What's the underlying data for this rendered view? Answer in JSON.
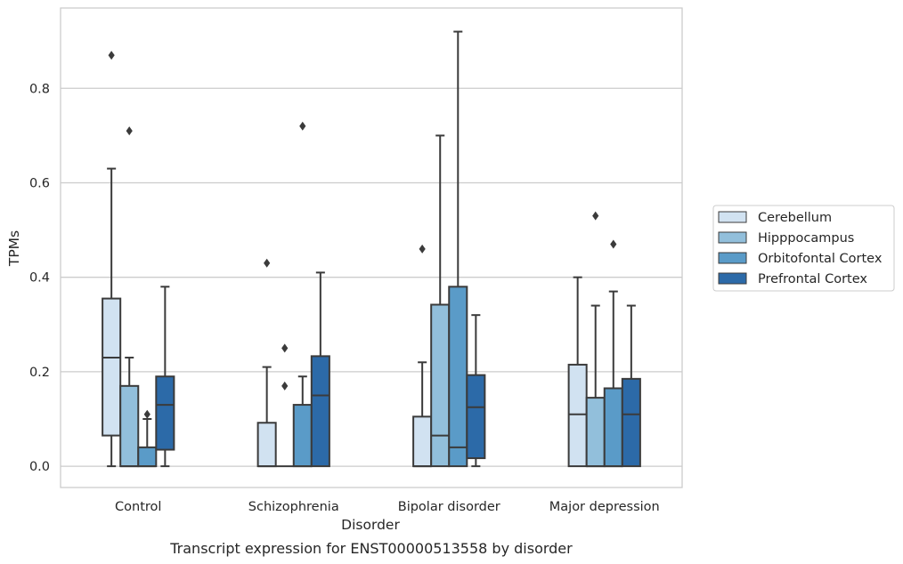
{
  "chart_data": {
    "type": "box",
    "caption": "Transcript expression for ENST00000513558 by disorder",
    "xlabel": "Disorder",
    "ylabel": "TPMs",
    "ylim": [
      -0.045,
      0.97
    ],
    "yticks": [
      0.0,
      0.2,
      0.4,
      0.6,
      0.8
    ],
    "ytick_labels": [
      "0.0",
      "0.2",
      "0.4",
      "0.6",
      "0.8"
    ],
    "grid": true,
    "legend_position": "right",
    "categories": [
      "Control",
      "Schizophrenia",
      "Bipolar disorder",
      "Major depression"
    ],
    "series": [
      {
        "name": "Cerebellum",
        "color": "#d1e2f1",
        "boxes": [
          {
            "min": 0.0,
            "q1": 0.065,
            "median": 0.23,
            "q3": 0.355,
            "max": 0.63,
            "outliers": [
              0.87
            ]
          },
          {
            "min": 0.0,
            "q1": 0.0,
            "median": 0.0,
            "q3": 0.092,
            "max": 0.21,
            "outliers": [
              0.43
            ]
          },
          {
            "min": 0.0,
            "q1": 0.0,
            "median": 0.0,
            "q3": 0.105,
            "max": 0.22,
            "outliers": [
              0.46
            ]
          },
          {
            "min": 0.0,
            "q1": 0.0,
            "median": 0.11,
            "q3": 0.215,
            "max": 0.4,
            "outliers": []
          }
        ]
      },
      {
        "name": "Hipppocampus",
        "color": "#92bfdb",
        "boxes": [
          {
            "min": 0.0,
            "q1": 0.0,
            "median": 0.0,
            "q3": 0.17,
            "max": 0.23,
            "outliers": [
              0.71
            ]
          },
          {
            "min": 0.0,
            "q1": 0.0,
            "median": 0.0,
            "q3": 0.0,
            "max": 0.0,
            "outliers": [
              0.25,
              0.17
            ]
          },
          {
            "min": 0.0,
            "q1": 0.0,
            "median": 0.065,
            "q3": 0.342,
            "max": 0.7,
            "outliers": []
          },
          {
            "min": 0.0,
            "q1": 0.0,
            "median": 0.0,
            "q3": 0.145,
            "max": 0.34,
            "outliers": [
              0.53
            ]
          }
        ]
      },
      {
        "name": "Orbitofontal Cortex",
        "color": "#5a9bc8",
        "boxes": [
          {
            "min": 0.0,
            "q1": 0.0,
            "median": 0.0,
            "q3": 0.04,
            "max": 0.1,
            "outliers": [
              0.11
            ]
          },
          {
            "min": 0.0,
            "q1": 0.0,
            "median": 0.0,
            "q3": 0.13,
            "max": 0.19,
            "outliers": [
              0.72
            ]
          },
          {
            "min": 0.0,
            "q1": 0.0,
            "median": 0.04,
            "q3": 0.38,
            "max": 0.92,
            "outliers": []
          },
          {
            "min": 0.0,
            "q1": 0.0,
            "median": 0.0,
            "q3": 0.165,
            "max": 0.37,
            "outliers": [
              0.47
            ]
          }
        ]
      },
      {
        "name": "Prefrontal Cortex",
        "color": "#2c6aa8",
        "boxes": [
          {
            "min": 0.0,
            "q1": 0.035,
            "median": 0.13,
            "q3": 0.19,
            "max": 0.38,
            "outliers": []
          },
          {
            "min": 0.0,
            "q1": 0.0,
            "median": 0.15,
            "q3": 0.233,
            "max": 0.41,
            "outliers": []
          },
          {
            "min": 0.0,
            "q1": 0.017,
            "median": 0.125,
            "q3": 0.193,
            "max": 0.32,
            "outliers": []
          },
          {
            "min": 0.0,
            "q1": 0.0,
            "median": 0.11,
            "q3": 0.185,
            "max": 0.34,
            "outliers": []
          }
        ]
      }
    ]
  }
}
